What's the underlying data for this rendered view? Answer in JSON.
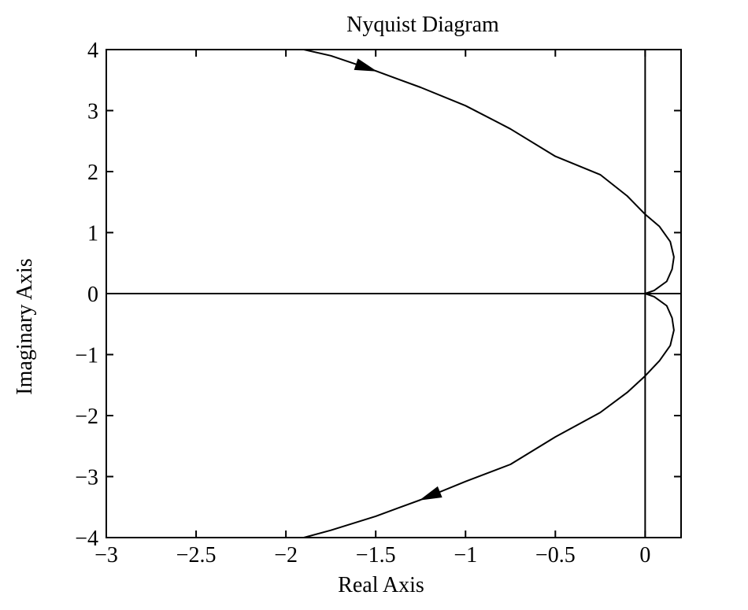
{
  "chart_data": {
    "type": "line",
    "title": "Nyquist Diagram",
    "xlabel": "Real Axis",
    "ylabel": "Imaginary Axis",
    "xlim": [
      -3,
      0.2
    ],
    "ylim": [
      -4,
      4
    ],
    "grid": false,
    "x_ticks": [
      -3,
      -2.5,
      -2,
      -1.5,
      -1,
      -0.5,
      0
    ],
    "x_tick_labels": [
      "−3",
      "−2.5",
      "−2",
      "−1.5",
      "−1",
      "−0.5",
      "0"
    ],
    "y_ticks": [
      4,
      3,
      2,
      1,
      0,
      -1,
      -2,
      -3,
      -4
    ],
    "y_tick_labels": [
      "4",
      "3",
      "2",
      "1",
      "0",
      "−1",
      "−2",
      "−3",
      "−4"
    ],
    "reference_lines": {
      "x": 0,
      "y": 0
    },
    "series": [
      {
        "x": [
          -1.9,
          -1.75,
          -1.5,
          -1.25,
          -1.0,
          -0.75,
          -0.5,
          -0.25,
          -0.1,
          0.0,
          0.08,
          0.14,
          0.16,
          0.15,
          0.12,
          0.05,
          0.0
        ],
        "y": [
          4.0,
          3.9,
          3.65,
          3.38,
          3.08,
          2.7,
          2.25,
          1.95,
          1.6,
          1.3,
          1.1,
          0.85,
          0.6,
          0.4,
          0.2,
          0.05,
          0.0
        ],
        "arrow_at_x": -1.5
      },
      {
        "x": [
          0.0,
          0.05,
          0.12,
          0.15,
          0.16,
          0.14,
          0.08,
          0.0,
          -0.1,
          -0.25,
          -0.5,
          -0.75,
          -1.0,
          -1.25,
          -1.5,
          -1.75,
          -1.9
        ],
        "y": [
          0.0,
          -0.05,
          -0.2,
          -0.4,
          -0.6,
          -0.85,
          -1.1,
          -1.35,
          -1.62,
          -1.95,
          -2.35,
          -2.8,
          -3.08,
          -3.38,
          -3.65,
          -3.88,
          -4.0
        ],
        "arrow_at_x": -1.25
      }
    ]
  }
}
